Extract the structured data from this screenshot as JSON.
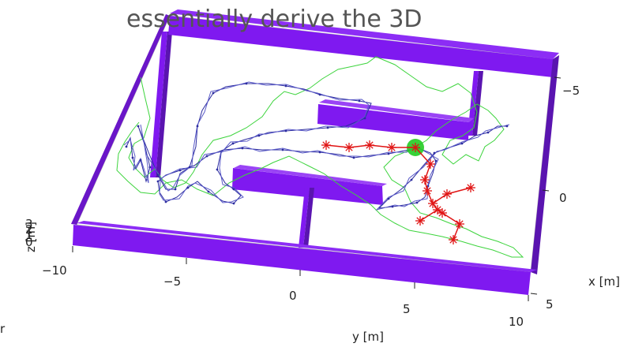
{
  "overlay_text": "essentially derive the 3D",
  "margin_glyph": "r",
  "chart_data": {
    "type": "3d-plot",
    "xlabel": "x [m]",
    "ylabel": "y [m]",
    "zlabel": "z [m]",
    "x_ticks": [
      "−5",
      "0",
      "5"
    ],
    "y_ticks": [
      "−10",
      "−5",
      "0",
      "5",
      "10"
    ],
    "z_ticks": [
      "3",
      "2",
      "1",
      "0"
    ],
    "colors": {
      "walls": "#7f19f0",
      "wall_top": "#8c2df5",
      "estimated_path": "#2c2ca0",
      "ground_truth_path": "#3dd43d",
      "skeleton": "#e01414",
      "skeleton_root": "#22cc22"
    },
    "series": [
      {
        "color_key": "estimated_path"
      },
      {
        "color_key": "ground_truth_path"
      },
      {
        "color_key": "skeleton"
      }
    ]
  }
}
